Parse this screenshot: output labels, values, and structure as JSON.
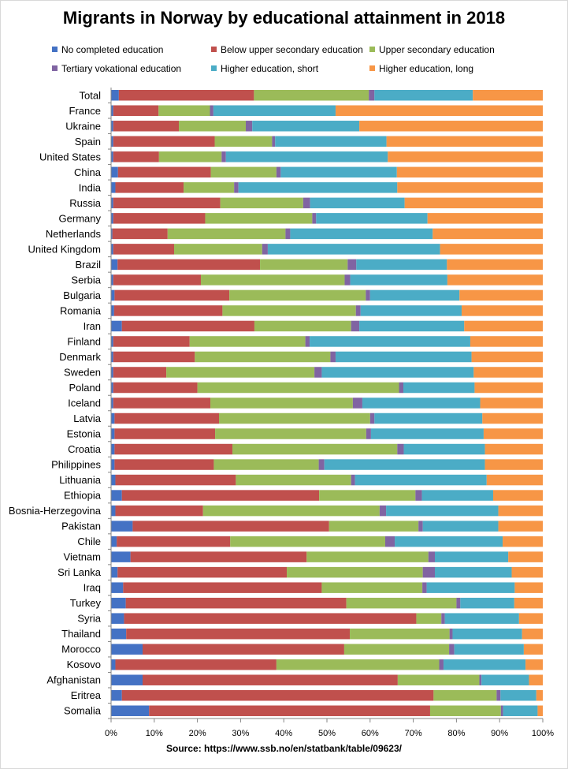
{
  "chart_data": {
    "type": "bar",
    "orientation": "horizontal",
    "stacked": "percent",
    "title": "Migrants in Norway by educational attainment in 2018",
    "source": "Source: https://www.ssb.no/en/statbank/table/09623/",
    "xlabel": "",
    "ylabel": "",
    "xlim": [
      0,
      100
    ],
    "x_ticks": [
      "0%",
      "10%",
      "20%",
      "30%",
      "40%",
      "50%",
      "60%",
      "70%",
      "80%",
      "90%",
      "100%"
    ],
    "legend_position": "top",
    "gridlines": false,
    "categories": [
      "Total",
      "France",
      "Ukraine",
      "Spain",
      "United States",
      "China",
      "India",
      "Russia",
      "Germany",
      "Netherlands",
      "United Kingdom",
      "Brazil",
      "Serbia",
      "Bulgaria",
      "Romania",
      "Iran",
      "Finland",
      "Denmark",
      "Sweden",
      "Poland",
      "Iceland",
      "Latvia",
      "Estonia",
      "Croatia",
      "Philippines",
      "Lithuania",
      "Ethiopia",
      "Bosnia-Herzegovina",
      "Pakistan",
      "Chile",
      "Vietnam",
      "Sri Lanka",
      "Iraq",
      "Turkey",
      "Syria",
      "Thailand",
      "Morocco",
      "Kosovo",
      "Afghanistan",
      "Eritrea",
      "Somalia"
    ],
    "series": [
      {
        "name": "No completed education",
        "color": "#4472c4",
        "values": [
          1.8,
          0.5,
          0.5,
          0.5,
          0.5,
          1.6,
          1.0,
          0.5,
          0.5,
          0.3,
          0.5,
          1.5,
          0.5,
          0.8,
          0.7,
          2.5,
          0.5,
          0.5,
          0.5,
          0.5,
          0.5,
          0.8,
          0.8,
          0.8,
          0.8,
          1.0,
          2.5,
          1.0,
          5.0,
          1.3,
          4.5,
          1.5,
          2.8,
          3.4,
          3.0,
          3.5,
          7.3,
          1.0,
          7.3,
          2.5,
          8.8
        ]
      },
      {
        "name": "Below upper secondary education",
        "color": "#c0504d",
        "values": [
          31.3,
          10.5,
          15.2,
          23.5,
          10.6,
          21.5,
          15.8,
          24.8,
          21.3,
          12.8,
          14.1,
          33.0,
          20.3,
          26.6,
          25.1,
          30.7,
          17.7,
          18.9,
          12.3,
          19.5,
          22.5,
          24.2,
          23.3,
          27.3,
          23.0,
          27.9,
          45.7,
          20.3,
          45.5,
          26.3,
          40.8,
          39.2,
          46.0,
          51.1,
          67.7,
          51.8,
          46.7,
          37.3,
          59.1,
          72.2,
          65.1
        ]
      },
      {
        "name": "Upper secondary education",
        "color": "#9bbb59",
        "values": [
          26.6,
          11.9,
          15.5,
          13.3,
          14.5,
          15.2,
          11.7,
          19.2,
          24.8,
          27.3,
          20.4,
          20.3,
          33.3,
          31.6,
          30.9,
          22.4,
          26.8,
          31.4,
          34.3,
          46.7,
          33.0,
          35.0,
          35.0,
          38.2,
          24.3,
          26.7,
          22.3,
          40.9,
          20.7,
          35.9,
          28.2,
          31.5,
          23.3,
          25.5,
          5.8,
          23.1,
          24.3,
          37.7,
          18.9,
          14.6,
          16.4
        ]
      },
      {
        "name": "Tertiary vokational  education",
        "color": "#8064a2",
        "values": [
          1.3,
          0.8,
          1.5,
          0.7,
          1.0,
          1.0,
          1.0,
          1.6,
          0.9,
          1.1,
          1.3,
          2.0,
          1.3,
          1.0,
          1.1,
          1.9,
          1.0,
          1.2,
          1.7,
          1.0,
          2.2,
          1.0,
          1.1,
          1.5,
          1.3,
          0.9,
          1.5,
          1.5,
          1.0,
          2.2,
          1.5,
          2.8,
          1.0,
          0.9,
          0.8,
          0.7,
          1.2,
          1.0,
          0.5,
          0.9,
          0.5
        ]
      },
      {
        "name": "Higher education, short",
        "color": "#4bacc6",
        "values": [
          22.8,
          28.3,
          24.8,
          25.8,
          37.5,
          26.9,
          36.8,
          21.9,
          25.8,
          33.0,
          39.9,
          21.0,
          22.5,
          20.7,
          23.4,
          24.3,
          37.2,
          31.5,
          35.2,
          16.5,
          27.3,
          25.0,
          26.1,
          18.8,
          37.2,
          30.5,
          16.5,
          26.0,
          17.5,
          25.0,
          17.0,
          17.8,
          20.4,
          12.5,
          17.2,
          16.1,
          16.1,
          19.0,
          11.0,
          8.3,
          8.0
        ]
      },
      {
        "name": "Higher education, long",
        "color": "#f79646",
        "values": [
          16.2,
          48.0,
          42.5,
          36.2,
          35.9,
          33.8,
          33.7,
          32.0,
          26.7,
          25.5,
          23.8,
          22.2,
          22.1,
          19.3,
          18.8,
          18.2,
          16.8,
          16.5,
          16.0,
          15.8,
          14.5,
          14.0,
          13.7,
          13.4,
          13.4,
          13.0,
          11.5,
          10.3,
          10.3,
          9.3,
          8.0,
          7.2,
          6.5,
          6.6,
          5.5,
          4.8,
          4.4,
          4.0,
          3.2,
          1.5,
          1.2
        ]
      }
    ]
  }
}
